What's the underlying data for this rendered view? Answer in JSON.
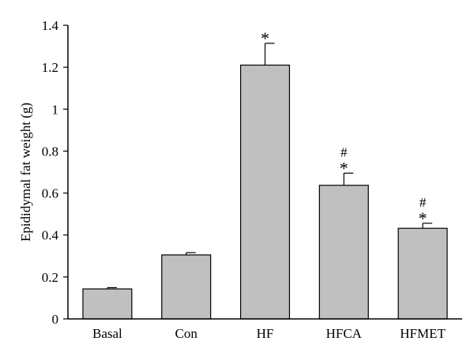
{
  "chart_data": {
    "type": "bar",
    "title": "",
    "xlabel": "",
    "ylabel": "Epididymal fat weight (g)",
    "ylim": [
      0,
      1.4
    ],
    "yticks": [
      0,
      0.2,
      0.4,
      0.6,
      0.8,
      1,
      1.2,
      1.4
    ],
    "ytick_labels": [
      "0",
      "0.2",
      "0.4",
      "0.6",
      "0.8",
      "1",
      "1.2",
      "1.4"
    ],
    "categories": [
      "Basal",
      "Con",
      "HF",
      "HFCA",
      "HFMET"
    ],
    "values": [
      0.143,
      0.305,
      1.21,
      0.637,
      0.432
    ],
    "errors": [
      0.006,
      0.011,
      0.104,
      0.058,
      0.024
    ],
    "significance": [
      [],
      [],
      [
        "*"
      ],
      [
        "#",
        "*"
      ],
      [
        "#",
        "*"
      ]
    ],
    "bar_color": "#c0c0c0",
    "edge_color": "#000000",
    "grid": false,
    "legend": "none"
  }
}
